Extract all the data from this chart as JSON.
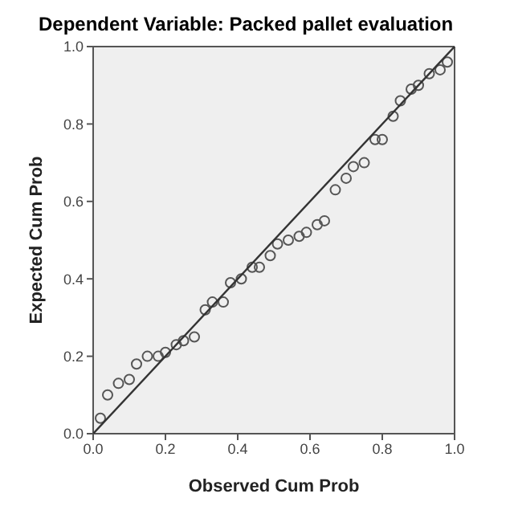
{
  "chart_data": {
    "type": "scatter",
    "title": "Dependent Variable: Packed pallet evaluation",
    "xlabel": "Observed Cum Prob",
    "ylabel": "Expected Cum Prob",
    "xlim": [
      0,
      1
    ],
    "ylim": [
      0,
      1
    ],
    "xticks": [
      {
        "value": 0,
        "label": "0.0"
      },
      {
        "value": 0.2,
        "label": "0.2"
      },
      {
        "value": 0.4,
        "label": "0.4"
      },
      {
        "value": 0.6,
        "label": "0.6"
      },
      {
        "value": 0.8,
        "label": "0.8"
      },
      {
        "value": 1,
        "label": "1.0"
      }
    ],
    "yticks": [
      {
        "value": 0,
        "label": "0.0"
      },
      {
        "value": 0.2,
        "label": "0.2"
      },
      {
        "value": 0.4,
        "label": "0.4"
      },
      {
        "value": 0.6,
        "label": "0.6"
      },
      {
        "value": 0.8,
        "label": "0.8"
      },
      {
        "value": 1,
        "label": "1.0"
      }
    ],
    "grid": false,
    "legend": false,
    "series": [
      {
        "type": "scatter",
        "marker": "circle",
        "color": "#555555",
        "x": [
          0.02,
          0.04,
          0.07,
          0.1,
          0.12,
          0.15,
          0.18,
          0.2,
          0.23,
          0.25,
          0.28,
          0.31,
          0.33,
          0.36,
          0.38,
          0.41,
          0.44,
          0.46,
          0.49,
          0.51,
          0.54,
          0.57,
          0.59,
          0.62,
          0.64,
          0.67,
          0.7,
          0.72,
          0.75,
          0.78,
          0.8,
          0.83,
          0.85,
          0.88,
          0.9,
          0.93,
          0.96,
          0.98
        ],
        "values": [
          0.04,
          0.1,
          0.13,
          0.14,
          0.18,
          0.2,
          0.2,
          0.21,
          0.23,
          0.24,
          0.25,
          0.32,
          0.34,
          0.34,
          0.39,
          0.4,
          0.43,
          0.43,
          0.46,
          0.49,
          0.5,
          0.51,
          0.52,
          0.54,
          0.55,
          0.63,
          0.66,
          0.69,
          0.7,
          0.76,
          0.76,
          0.82,
          0.86,
          0.89,
          0.9,
          0.93,
          0.94,
          0.96
        ]
      },
      {
        "type": "line",
        "marker": "none",
        "color": "#333333",
        "x": [
          0,
          1
        ],
        "values": [
          0,
          1
        ]
      }
    ]
  }
}
